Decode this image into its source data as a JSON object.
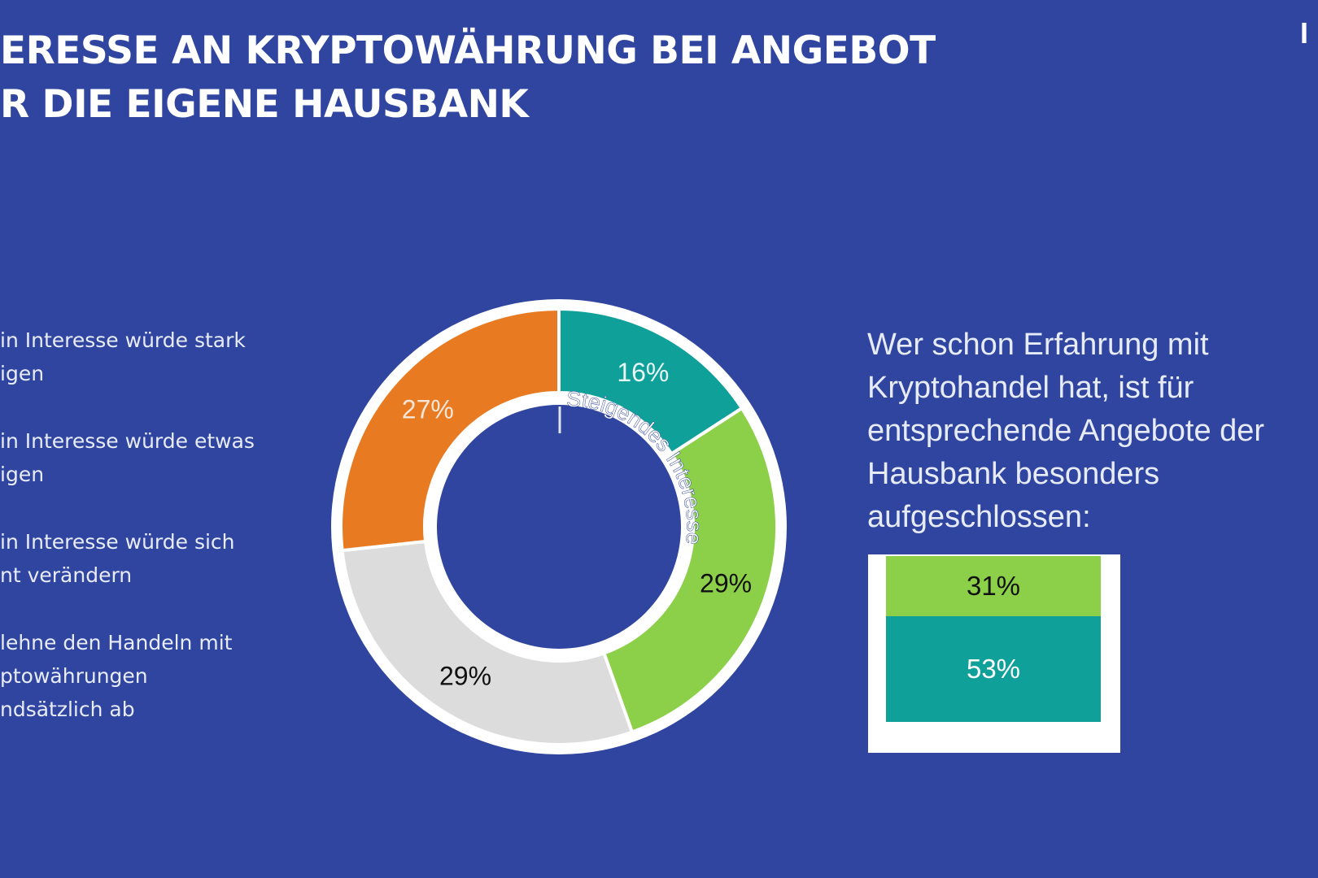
{
  "title": {
    "line1": "ERESSE AN KRYPTOWÄHRUNG BEI ANGEBOT",
    "line2": "R DIE EIGENE HAUSBANK"
  },
  "logo_text": "I",
  "legend": [
    {
      "line1": "in  Interesse würde stark",
      "line2": "igen"
    },
    {
      "line1": "in  Interesse würde etwas",
      "line2": "igen"
    },
    {
      "line1": "in  Interesse würde sich",
      "line2": "nt verändern"
    },
    {
      "line1": " lehne den Handeln mit",
      "line2": "ptowährungen",
      "line3": "ndsätzlich ab"
    }
  ],
  "chart_data": {
    "type": "pie",
    "variant": "donut",
    "center_label": "Steigendes Interesse",
    "slices": [
      {
        "label": "16%",
        "value": 16,
        "color": "#0fa09a"
      },
      {
        "label": "29%",
        "value": 29,
        "color": "#8ccf48"
      },
      {
        "label": "29%",
        "value": 29,
        "color": "#dcdcdc"
      },
      {
        "label": "27%",
        "value": 27,
        "color": "#e87b22"
      }
    ]
  },
  "note": {
    "text": "Wer schon Erfahrung mit Kryptohandel hat, ist für entsprechende Angebote der Hausbank besonders aufgeschlossen:",
    "bars": [
      {
        "label": "31%",
        "color": "#8ccf48"
      },
      {
        "label": "53%",
        "color": "#0fa09a"
      }
    ]
  }
}
